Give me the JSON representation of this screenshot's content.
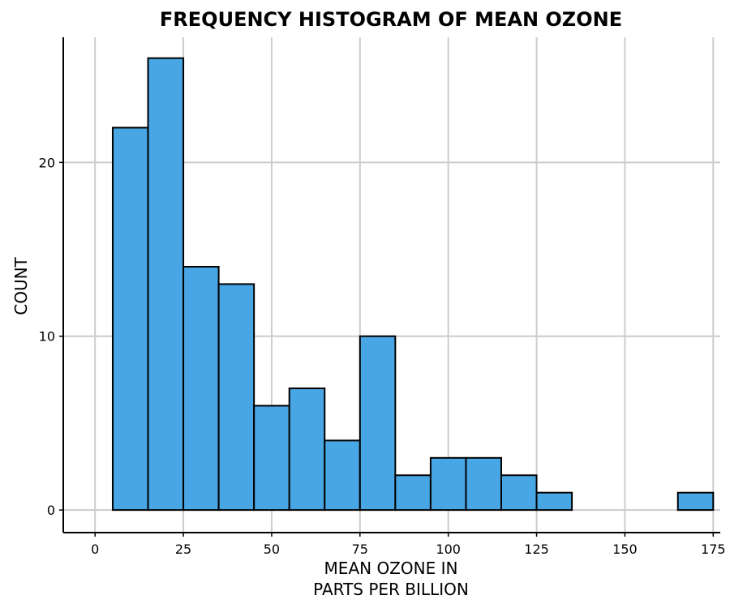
{
  "chart_data": {
    "type": "bar",
    "title": "FREQUENCY HISTOGRAM OF MEAN OZONE",
    "xlabel": [
      "MEAN OZONE IN",
      "PARTS PER BILLION"
    ],
    "ylabel": "COUNT",
    "bin_width": 10,
    "bins": [
      {
        "x0": 5,
        "x1": 15,
        "count": 22
      },
      {
        "x0": 15,
        "x1": 25,
        "count": 26
      },
      {
        "x0": 25,
        "x1": 35,
        "count": 14
      },
      {
        "x0": 35,
        "x1": 45,
        "count": 13
      },
      {
        "x0": 45,
        "x1": 55,
        "count": 6
      },
      {
        "x0": 55,
        "x1": 65,
        "count": 7
      },
      {
        "x0": 65,
        "x1": 75,
        "count": 4
      },
      {
        "x0": 75,
        "x1": 85,
        "count": 10
      },
      {
        "x0": 85,
        "x1": 95,
        "count": 2
      },
      {
        "x0": 95,
        "x1": 105,
        "count": 3
      },
      {
        "x0": 105,
        "x1": 115,
        "count": 3
      },
      {
        "x0": 115,
        "x1": 125,
        "count": 2
      },
      {
        "x0": 125,
        "x1": 135,
        "count": 1
      },
      {
        "x0": 135,
        "x1": 145,
        "count": 0
      },
      {
        "x0": 145,
        "x1": 155,
        "count": 0
      },
      {
        "x0": 155,
        "x1": 165,
        "count": 0
      },
      {
        "x0": 165,
        "x1": 175,
        "count": 1
      }
    ],
    "xlim": [
      -9,
      177
    ],
    "ylim": [
      -1.3,
      27.2
    ],
    "xticks": [
      0,
      25,
      50,
      75,
      100,
      125,
      150,
      175
    ],
    "xtick_labels": [
      "0",
      "25",
      "50",
      "75",
      "100",
      "125",
      "150",
      "175"
    ],
    "yticks": [
      0,
      10,
      20
    ],
    "ytick_labels": [
      "0",
      "10",
      "20"
    ],
    "bar_color": "#48a6e4",
    "grid": true,
    "legend": "none"
  }
}
